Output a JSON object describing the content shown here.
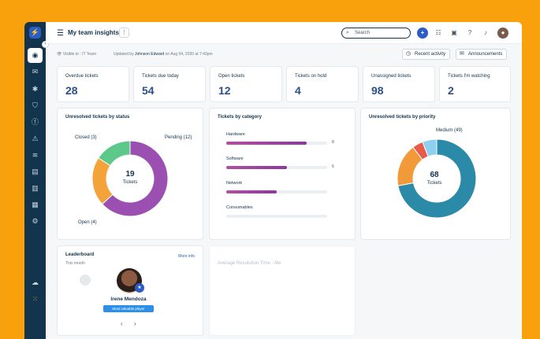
{
  "app": {
    "title": "My team insights",
    "search_placeholder": "Search",
    "visible_to": "Visible to : IT Team",
    "updated_prefix": "Updated by",
    "updated_by": "Johnson Edward",
    "updated_mid": "on Aug 04, 2020 at 7:43pm",
    "recent_activity": "Recent activity",
    "announcements": "Announcements"
  },
  "sidebar": {
    "items": [
      "dashboard-icon",
      "tickets-icon",
      "bug-icon",
      "shield-icon",
      "currency-icon",
      "alert-icon",
      "layers-icon",
      "box-icon",
      "book-icon",
      "chart-icon",
      "settings-icon"
    ],
    "footer": [
      "cloud-icon",
      "apps-icon"
    ]
  },
  "kpis": [
    {
      "label": "Overdue tickets",
      "value": "28"
    },
    {
      "label": "Tickets due today",
      "value": "54"
    },
    {
      "label": "Open tickets",
      "value": "12"
    },
    {
      "label": "Tickets on hold",
      "value": "4"
    },
    {
      "label": "Unassigned tickets",
      "value": "98"
    },
    {
      "label": "Tickets I'm watching",
      "value": "2"
    }
  ],
  "status_chart": {
    "title": "Unresolved tickets by status",
    "total": "19",
    "center_label": "Tickets",
    "labels": {
      "closed": "Closed (3)",
      "pending": "Pending (12)",
      "open": "Open (4)"
    }
  },
  "category_chart": {
    "title": "Tickets by category",
    "rows": [
      {
        "label": "Hardware",
        "value_text": "8"
      },
      {
        "label": "Software",
        "value_text": "6"
      },
      {
        "label": "Network",
        "value_text": ""
      },
      {
        "label": "Consumables",
        "value_text": ""
      }
    ]
  },
  "priority_chart": {
    "title": "Unresolved tickets by priority",
    "total": "68",
    "center_label": "Tickets",
    "labels": {
      "medium": "Medium (49)"
    }
  },
  "leaderboard": {
    "title": "Leaderboard",
    "subtitle": "This month",
    "more": "More info",
    "name": "Irene Mendoza",
    "tag": "Most valuable player"
  },
  "resolution": {
    "title": "Average Resolution Time - Me"
  },
  "chart_data": [
    {
      "type": "pie",
      "title": "Unresolved tickets by status",
      "categories": [
        "Pending",
        "Open",
        "Closed"
      ],
      "values": [
        12,
        4,
        3
      ],
      "colors": [
        "#9b4fb0",
        "#f4a23a",
        "#5cc88a"
      ]
    },
    {
      "type": "bar",
      "title": "Tickets by category",
      "categories": [
        "Hardware",
        "Software",
        "Network",
        "Consumables"
      ],
      "values": [
        8,
        6,
        5,
        0
      ],
      "colors": [
        "#a8449a"
      ]
    },
    {
      "type": "pie",
      "title": "Unresolved tickets by priority",
      "categories": [
        "Medium",
        "High",
        "Urgent",
        "Low"
      ],
      "values": [
        49,
        12,
        3,
        4
      ],
      "colors": [
        "#2b8aa8",
        "#f29a3a",
        "#e85a4a",
        "#8fd0f0"
      ]
    }
  ]
}
